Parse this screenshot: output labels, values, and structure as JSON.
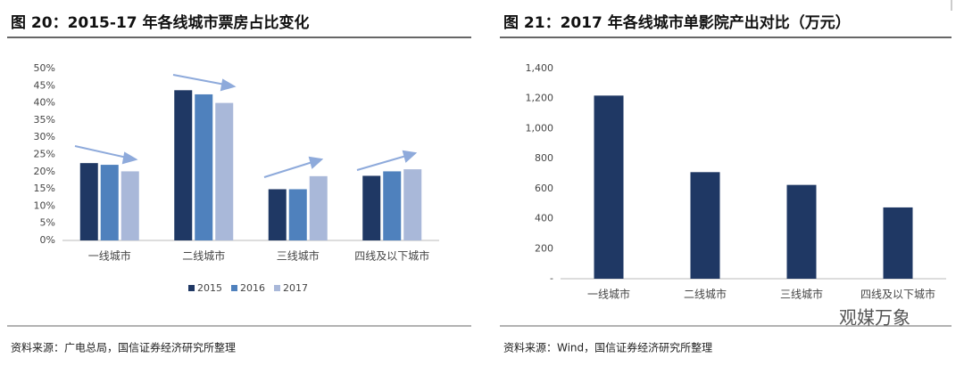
{
  "chart_data": [
    {
      "type": "bar",
      "title": "图 20：2015-17 年各线城市票房占比变化",
      "categories": [
        "一线城市",
        "二线城市",
        "三线城市",
        "四线及以下城市"
      ],
      "series": [
        {
          "name": "2015",
          "color": "#1f3864",
          "values": [
            22.5,
            43.7,
            14.9,
            18.8
          ]
        },
        {
          "name": "2016",
          "color": "#4f81bd",
          "values": [
            22.0,
            42.5,
            14.9,
            20.1
          ]
        },
        {
          "name": "2017",
          "color": "#a9b8d9",
          "values": [
            20.1,
            40.0,
            18.7,
            20.7
          ]
        }
      ],
      "ylim": [
        0,
        50
      ],
      "yticks": [
        {
          "value": 0,
          "label": "0%"
        },
        {
          "value": 5,
          "label": "5%"
        },
        {
          "value": 10,
          "label": "10%"
        },
        {
          "value": 15,
          "label": "15%"
        },
        {
          "value": 20,
          "label": "20%"
        },
        {
          "value": 25,
          "label": "25%"
        },
        {
          "value": 30,
          "label": "30%"
        },
        {
          "value": 35,
          "label": "35%"
        },
        {
          "value": 40,
          "label": "40%"
        },
        {
          "value": 45,
          "label": "45%"
        },
        {
          "value": 50,
          "label": "50%"
        }
      ],
      "legend": "bottom",
      "source": "资料来源：广电总局，国信证券经济研究所整理"
    },
    {
      "type": "bar",
      "title": "图 21：2017 年各线城市单影院产出对比（万元）",
      "categories": [
        "一线城市",
        "二线城市",
        "三线城市",
        "四线及以下城市"
      ],
      "values": [
        1220,
        710,
        625,
        475
      ],
      "color": "#1f3864",
      "ylim": [
        0,
        1400
      ],
      "yticks": [
        {
          "value": 0,
          "label": "-"
        },
        200,
        400,
        600,
        800,
        {
          "value": 1000,
          "label": "1,000"
        },
        {
          "value": 1200,
          "label": "1,200"
        },
        {
          "value": 1400,
          "label": "1,400"
        }
      ],
      "source": "资料来源：Wind，国信证券经济研究所整理"
    }
  ],
  "watermark": "观媒万象"
}
